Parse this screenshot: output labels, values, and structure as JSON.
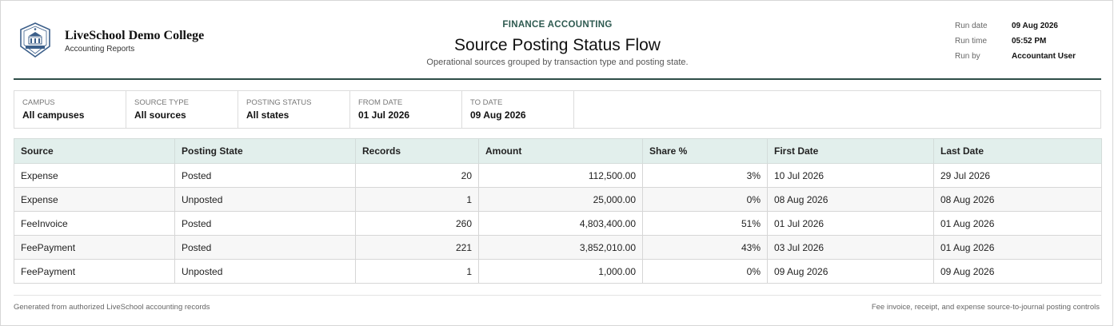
{
  "institution": {
    "name": "LiveSchool Demo College",
    "subtitle": "Accounting Reports"
  },
  "report": {
    "kicker": "FINANCE ACCOUNTING",
    "title": "Source Posting Status Flow",
    "description": "Operational sources grouped by transaction type and posting state."
  },
  "meta": [
    {
      "label": "Run date",
      "value": "09 Aug 2026"
    },
    {
      "label": "Run time",
      "value": "05:52 PM"
    },
    {
      "label": "Run by",
      "value": "Accountant User"
    }
  ],
  "filters": [
    {
      "label": "CAMPUS",
      "value": "All campuses"
    },
    {
      "label": "SOURCE TYPE",
      "value": "All sources"
    },
    {
      "label": "POSTING STATUS",
      "value": "All states"
    },
    {
      "label": "FROM DATE",
      "value": "01 Jul 2026"
    },
    {
      "label": "TO DATE",
      "value": "09 Aug 2026"
    }
  ],
  "table": {
    "columns": [
      "Source",
      "Posting State",
      "Records",
      "Amount",
      "Share %",
      "First Date",
      "Last Date"
    ],
    "rows": [
      [
        "Expense",
        "Posted",
        "20",
        "112,500.00",
        "3%",
        "10 Jul 2026",
        "29 Jul 2026"
      ],
      [
        "Expense",
        "Unposted",
        "1",
        "25,000.00",
        "0%",
        "08 Aug 2026",
        "08 Aug 2026"
      ],
      [
        "FeeInvoice",
        "Posted",
        "260",
        "4,803,400.00",
        "51%",
        "01 Jul 2026",
        "01 Aug 2026"
      ],
      [
        "FeePayment",
        "Posted",
        "221",
        "3,852,010.00",
        "43%",
        "03 Jul 2026",
        "01 Aug 2026"
      ],
      [
        "FeePayment",
        "Unposted",
        "1",
        "1,000.00",
        "0%",
        "09 Aug 2026",
        "09 Aug 2026"
      ]
    ]
  },
  "footer": {
    "left": "Generated from authorized LiveSchool accounting records",
    "right": "Fee invoice, receipt, and expense source-to-journal posting controls"
  },
  "colors": {
    "accent": "#2e4d48",
    "kicker": "#2e5a50",
    "table_header_bg": "#e2efec",
    "logo_blue": "#3c5f8a"
  },
  "icons": {
    "logo": "college-crest-icon"
  }
}
